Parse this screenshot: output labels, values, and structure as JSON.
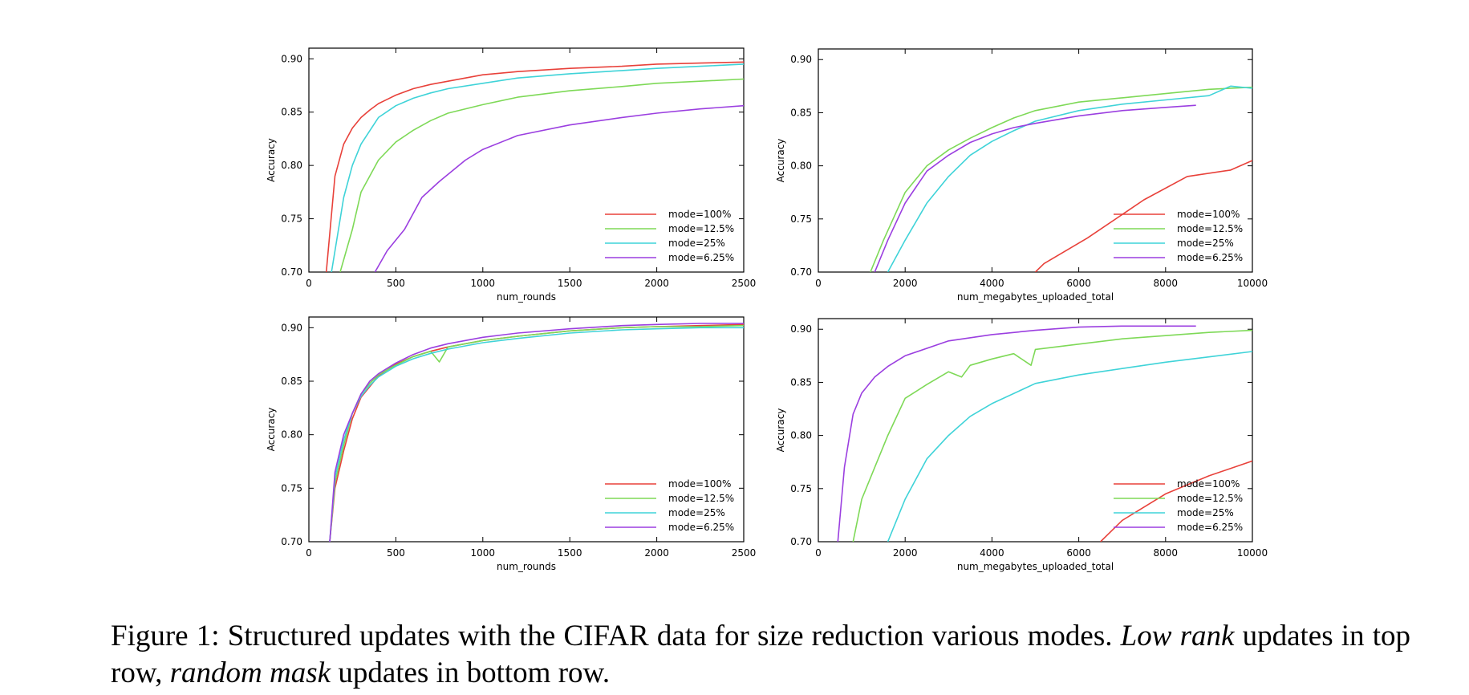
{
  "caption": {
    "lead": "Figure 1:  Structured updates with the CIFAR data for size reduction various modes.  ",
    "em1": "Low rank",
    "mid": " updates in top row, ",
    "em2": "random mask",
    "tail": " updates in bottom row."
  },
  "colors": {
    "mode=100%": "#e8413a",
    "mode=12.5%": "#7ed957",
    "mode=25%": "#3fd3d8",
    "mode=6.25%": "#9b3fe0"
  },
  "chart_data": [
    {
      "type": "line",
      "id": "tl",
      "title": "",
      "xlabel": "num_rounds",
      "ylabel": "Accuracy",
      "xlim": [
        0,
        2500
      ],
      "ylim": [
        0.7,
        0.91
      ],
      "xticks": [
        0,
        500,
        1000,
        1500,
        2000,
        2500
      ],
      "xtick_labels": [
        "0",
        "500",
        "1000",
        "1500",
        "2000",
        "2500"
      ],
      "yticks": [
        0.7,
        0.75,
        0.8,
        0.85,
        0.9
      ],
      "ytick_labels": [
        "0.70",
        "0.75",
        "0.80",
        "0.85",
        "0.90"
      ],
      "legend_position": "lower-right",
      "series": [
        {
          "name": "mode=100%",
          "x": [
            100,
            150,
            200,
            250,
            300,
            350,
            400,
            450,
            500,
            600,
            700,
            800,
            1000,
            1200,
            1500,
            1800,
            2000,
            2250,
            2500
          ],
          "y": [
            0.7,
            0.79,
            0.82,
            0.835,
            0.845,
            0.852,
            0.858,
            0.862,
            0.866,
            0.872,
            0.876,
            0.879,
            0.885,
            0.888,
            0.891,
            0.893,
            0.895,
            0.896,
            0.897
          ]
        },
        {
          "name": "mode=12.5%",
          "x": [
            180,
            250,
            300,
            400,
            500,
            600,
            700,
            800,
            1000,
            1200,
            1500,
            1800,
            2000,
            2250,
            2500
          ],
          "y": [
            0.7,
            0.74,
            0.775,
            0.805,
            0.822,
            0.833,
            0.842,
            0.849,
            0.857,
            0.864,
            0.87,
            0.874,
            0.877,
            0.879,
            0.881
          ]
        },
        {
          "name": "mode=25%",
          "x": [
            130,
            200,
            250,
            300,
            400,
            500,
            600,
            700,
            800,
            1000,
            1200,
            1500,
            1800,
            2000,
            2250,
            2500
          ],
          "y": [
            0.7,
            0.77,
            0.8,
            0.82,
            0.845,
            0.856,
            0.863,
            0.868,
            0.872,
            0.877,
            0.882,
            0.886,
            0.889,
            0.891,
            0.893,
            0.895
          ]
        },
        {
          "name": "mode=6.25%",
          "x": [
            380,
            450,
            550,
            650,
            750,
            900,
            1000,
            1200,
            1500,
            1800,
            2000,
            2250,
            2500
          ],
          "y": [
            0.7,
            0.72,
            0.74,
            0.77,
            0.785,
            0.805,
            0.815,
            0.828,
            0.838,
            0.845,
            0.849,
            0.853,
            0.856
          ]
        }
      ]
    },
    {
      "type": "line",
      "id": "tr",
      "title": "",
      "xlabel": "num_megabytes_uploaded_total",
      "ylabel": "Accuracy",
      "xlim": [
        0,
        10000
      ],
      "ylim": [
        0.7,
        0.91
      ],
      "xticks": [
        0,
        2000,
        4000,
        6000,
        8000,
        10000
      ],
      "xtick_labels": [
        "0",
        "2000",
        "4000",
        "6000",
        "8000",
        "10000"
      ],
      "yticks": [
        0.7,
        0.75,
        0.8,
        0.85,
        0.9
      ],
      "ytick_labels": [
        "0.70",
        "0.75",
        "0.80",
        "0.85",
        "0.90"
      ],
      "legend_position": "lower-right",
      "series": [
        {
          "name": "mode=100%",
          "x": [
            5000,
            5200,
            6200,
            7500,
            8500,
            9500,
            10000
          ],
          "y": [
            0.7,
            0.708,
            0.732,
            0.768,
            0.79,
            0.796,
            0.805
          ]
        },
        {
          "name": "mode=12.5%",
          "x": [
            1200,
            1500,
            2000,
            2500,
            3000,
            3500,
            4000,
            4500,
            5000,
            6000,
            7000,
            8000,
            9000,
            10000
          ],
          "y": [
            0.7,
            0.73,
            0.775,
            0.8,
            0.815,
            0.826,
            0.836,
            0.845,
            0.852,
            0.86,
            0.864,
            0.868,
            0.872,
            0.874
          ]
        },
        {
          "name": "mode=25%",
          "x": [
            1600,
            2000,
            2500,
            3000,
            3500,
            4000,
            4500,
            5000,
            6000,
            7000,
            8000,
            9000,
            9500,
            10000
          ],
          "y": [
            0.7,
            0.73,
            0.765,
            0.79,
            0.81,
            0.823,
            0.833,
            0.842,
            0.852,
            0.858,
            0.862,
            0.866,
            0.875,
            0.873
          ]
        },
        {
          "name": "mode=6.25%",
          "x": [
            1300,
            1600,
            2000,
            2500,
            3000,
            3500,
            4000,
            4500,
            5000,
            6000,
            7000,
            8000,
            8700
          ],
          "y": [
            0.7,
            0.73,
            0.765,
            0.795,
            0.81,
            0.822,
            0.83,
            0.836,
            0.84,
            0.847,
            0.852,
            0.855,
            0.857
          ]
        }
      ]
    },
    {
      "type": "line",
      "id": "bl",
      "title": "",
      "xlabel": "num_rounds",
      "ylabel": "Accuracy",
      "xlim": [
        0,
        2500
      ],
      "ylim": [
        0.7,
        0.91
      ],
      "xticks": [
        0,
        500,
        1000,
        1500,
        2000,
        2500
      ],
      "xtick_labels": [
        "0",
        "500",
        "1000",
        "1500",
        "2000",
        "2500"
      ],
      "yticks": [
        0.7,
        0.75,
        0.8,
        0.85,
        0.9
      ],
      "ytick_labels": [
        "0.70",
        "0.75",
        "0.80",
        "0.85",
        "0.90"
      ],
      "legend_position": "lower-right",
      "series": [
        {
          "name": "mode=100%",
          "x": [
            120,
            150,
            200,
            250,
            300,
            350,
            400,
            500,
            600,
            700,
            800,
            1000,
            1200,
            1500,
            1800,
            2000,
            2250,
            2500
          ],
          "y": [
            0.7,
            0.75,
            0.785,
            0.815,
            0.835,
            0.845,
            0.855,
            0.866,
            0.873,
            0.878,
            0.882,
            0.888,
            0.892,
            0.897,
            0.9,
            0.901,
            0.902,
            0.903
          ]
        },
        {
          "name": "mode=12.5%",
          "x": [
            120,
            150,
            200,
            250,
            300,
            350,
            400,
            500,
            600,
            700,
            750,
            800,
            1000,
            1200,
            1500,
            1800,
            2000,
            2250,
            2500
          ],
          "y": [
            0.7,
            0.755,
            0.79,
            0.82,
            0.838,
            0.848,
            0.856,
            0.865,
            0.873,
            0.878,
            0.868,
            0.882,
            0.888,
            0.892,
            0.897,
            0.9,
            0.901,
            0.901,
            0.902
          ]
        },
        {
          "name": "mode=25%",
          "x": [
            120,
            150,
            200,
            250,
            300,
            350,
            400,
            500,
            600,
            700,
            800,
            1000,
            1200,
            1500,
            1800,
            2000,
            2250,
            2500
          ],
          "y": [
            0.7,
            0.76,
            0.795,
            0.82,
            0.836,
            0.846,
            0.854,
            0.864,
            0.871,
            0.876,
            0.88,
            0.886,
            0.89,
            0.895,
            0.898,
            0.899,
            0.9,
            0.9
          ]
        },
        {
          "name": "mode=6.25%",
          "x": [
            120,
            150,
            200,
            250,
            300,
            350,
            400,
            500,
            600,
            700,
            800,
            1000,
            1200,
            1500,
            1800,
            2000,
            2250,
            2500
          ],
          "y": [
            0.7,
            0.765,
            0.8,
            0.82,
            0.838,
            0.85,
            0.857,
            0.867,
            0.875,
            0.881,
            0.885,
            0.891,
            0.895,
            0.899,
            0.902,
            0.903,
            0.904,
            0.904
          ]
        }
      ]
    },
    {
      "type": "line",
      "id": "br",
      "title": "",
      "xlabel": "num_megabytes_uploaded_total",
      "ylabel": "Accuracy",
      "xlim": [
        0,
        10000
      ],
      "ylim": [
        0.7,
        0.91
      ],
      "xticks": [
        0,
        2000,
        4000,
        6000,
        8000,
        10000
      ],
      "xtick_labels": [
        "0",
        "2000",
        "4000",
        "6000",
        "8000",
        "10000"
      ],
      "yticks": [
        0.7,
        0.75,
        0.8,
        0.85,
        0.9
      ],
      "ytick_labels": [
        "0.70",
        "0.75",
        "0.80",
        "0.85",
        "0.90"
      ],
      "legend_position": "lower-right",
      "series": [
        {
          "name": "mode=100%",
          "x": [
            6500,
            7000,
            8000,
            9000,
            10000
          ],
          "y": [
            0.7,
            0.72,
            0.745,
            0.762,
            0.776
          ]
        },
        {
          "name": "mode=12.5%",
          "x": [
            800,
            1000,
            1300,
            1600,
            2000,
            2500,
            3000,
            3300,
            3500,
            4000,
            4500,
            4900,
            5000,
            6000,
            7000,
            8000,
            9000,
            10000
          ],
          "y": [
            0.7,
            0.74,
            0.77,
            0.8,
            0.835,
            0.848,
            0.86,
            0.855,
            0.866,
            0.872,
            0.877,
            0.866,
            0.881,
            0.886,
            0.891,
            0.894,
            0.897,
            0.899
          ]
        },
        {
          "name": "mode=25%",
          "x": [
            1600,
            2000,
            2500,
            3000,
            3500,
            4000,
            5000,
            6000,
            7000,
            8000,
            9000,
            10000
          ],
          "y": [
            0.7,
            0.74,
            0.778,
            0.8,
            0.818,
            0.83,
            0.849,
            0.857,
            0.863,
            0.869,
            0.874,
            0.879
          ]
        },
        {
          "name": "mode=6.25%",
          "x": [
            450,
            600,
            800,
            1000,
            1300,
            1600,
            2000,
            3000,
            4000,
            5000,
            6000,
            7000,
            8000,
            8700
          ],
          "y": [
            0.7,
            0.77,
            0.82,
            0.84,
            0.855,
            0.865,
            0.875,
            0.889,
            0.895,
            0.899,
            0.902,
            0.903,
            0.903,
            0.903
          ]
        }
      ]
    }
  ]
}
